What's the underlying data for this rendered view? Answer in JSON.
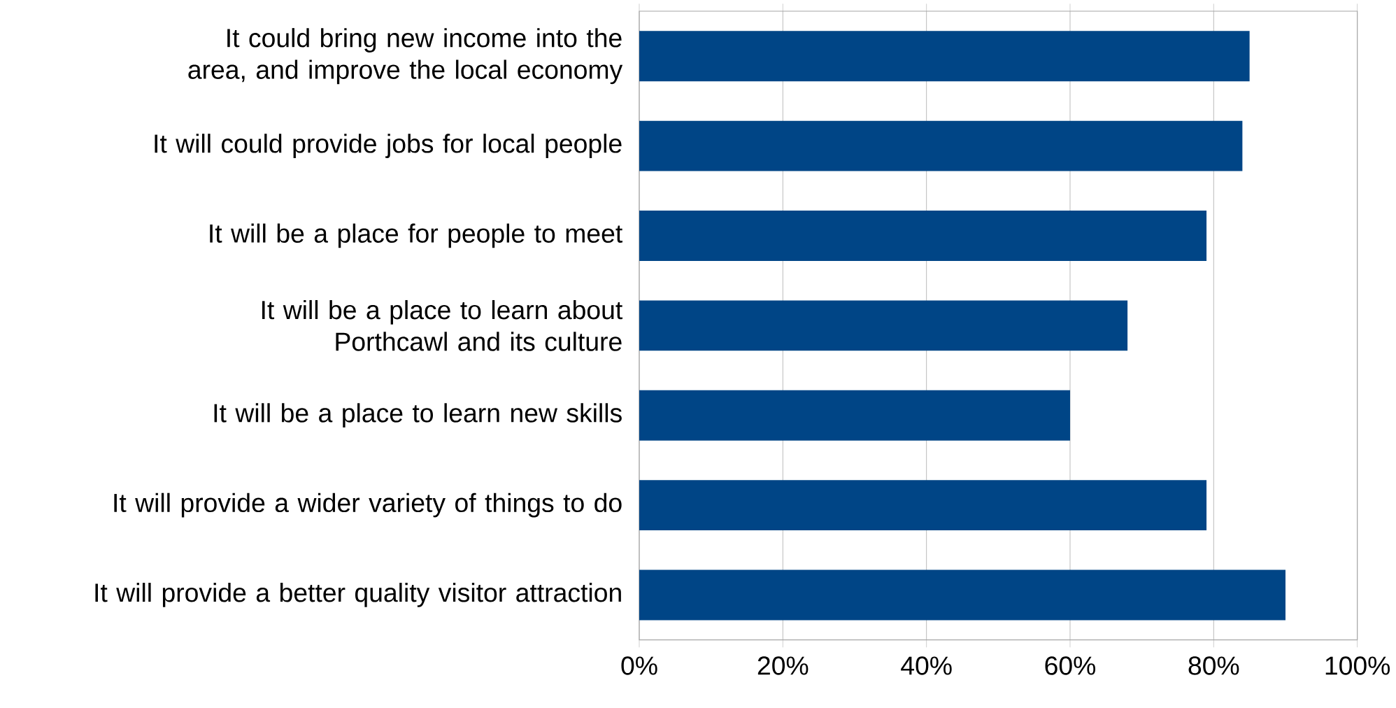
{
  "chart_data": {
    "type": "bar",
    "orientation": "horizontal",
    "categories": [
      "It could bring new income into the area, and improve the local economy",
      "It will could provide jobs for local people",
      "It will be a place for people to meet",
      "It will be a place to learn about Porthcawl and its culture",
      "It will be a place to learn new skills",
      "It will provide a wider variety of things to do",
      "It will provide a better quality visitor attraction"
    ],
    "values": [
      85,
      84,
      79,
      68,
      60,
      79,
      90
    ],
    "color": "#004586",
    "xlim": [
      0,
      100
    ],
    "xticks": [
      {
        "value": 0,
        "label": "0%"
      },
      {
        "value": 20,
        "label": "20%"
      },
      {
        "value": 40,
        "label": "40%"
      },
      {
        "value": 60,
        "label": "60%"
      },
      {
        "value": 80,
        "label": "80%"
      },
      {
        "value": 100,
        "label": "100%"
      }
    ],
    "grid": "x"
  }
}
